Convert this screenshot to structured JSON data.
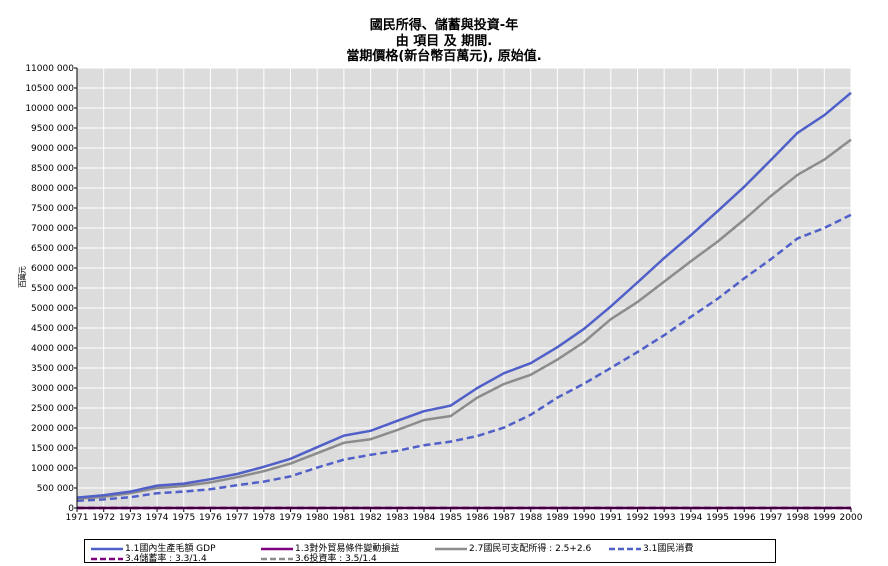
{
  "title": {
    "line1": "國民所得、儲蓄與投資-年",
    "line2": "由 項目 及 期間.",
    "line3": "當期價格(新台幣百萬元), 原始值."
  },
  "yaxis_label": "百萬元",
  "colors": {
    "plot_bg": "#dcdcdc",
    "grid": "#ffffff",
    "gdp": "#5060c8",
    "terms_of_trade": "#800080",
    "disposable": "#8c8c8c",
    "consumption": "#5060c8",
    "saving_rate": "#800080",
    "investment_rate": "#8c8c8c"
  },
  "chart_data": {
    "type": "line",
    "x": [
      "1971",
      "1972",
      "1973",
      "1974",
      "1975",
      "1976",
      "1977",
      "1978",
      "1979",
      "1980",
      "1981",
      "1982",
      "1983",
      "1984",
      "1985",
      "1986",
      "1987",
      "1988",
      "1989",
      "1990",
      "1991",
      "1992",
      "1993",
      "1994",
      "1995",
      "1996",
      "1997",
      "1998",
      "1999",
      "2000"
    ],
    "xlabel": "",
    "ylabel": "百萬元",
    "ylim": [
      0,
      11000000
    ],
    "yticks": [
      0,
      500000,
      1000000,
      1500000,
      2000000,
      2500000,
      3000000,
      3500000,
      4000000,
      4500000,
      5000000,
      5500000,
      6000000,
      6500000,
      7000000,
      7500000,
      8000000,
      8500000,
      9000000,
      9500000,
      10000000,
      10500000,
      11000000
    ],
    "ytick_labels": [
      "0",
      "500 000",
      "1000 000",
      "1500 000",
      "2000 000",
      "2500 000",
      "3000 000",
      "3500 000",
      "4000 000",
      "4500 000",
      "5000 000",
      "5500 000",
      "6000 000",
      "6500 000",
      "7000 000",
      "7500 000",
      "8000 000",
      "8500 000",
      "9000 000",
      "9500 000",
      "10000 000",
      "10500 000",
      "11000 000"
    ],
    "grid": true,
    "legend_position": "bottom",
    "series": [
      {
        "name": "1.1國內生產毛額 GDP",
        "style": "solid",
        "color": "#5060c8",
        "values": [
          260000,
          320000,
          410000,
          560000,
          610000,
          720000,
          850000,
          1030000,
          1230000,
          1520000,
          1810000,
          1930000,
          2180000,
          2420000,
          2560000,
          3000000,
          3370000,
          3620000,
          4020000,
          4480000,
          5040000,
          5640000,
          6250000,
          6820000,
          7420000,
          8030000,
          8700000,
          9380000,
          9820000,
          10380000
        ]
      },
      {
        "name": "1.3對外貿易條件變動損益",
        "style": "solid",
        "color": "#800080",
        "values": [
          0,
          0,
          0,
          0,
          0,
          0,
          0,
          0,
          0,
          0,
          0,
          0,
          0,
          0,
          0,
          0,
          0,
          0,
          0,
          0,
          0,
          0,
          0,
          0,
          0,
          0,
          0,
          0,
          0,
          0
        ]
      },
      {
        "name": "2.7國民可支配所得 : 2.5+2.6",
        "style": "solid",
        "color": "#8c8c8c",
        "values": [
          230000,
          280000,
          370000,
          500000,
          550000,
          640000,
          770000,
          920000,
          1110000,
          1370000,
          1630000,
          1720000,
          1950000,
          2200000,
          2300000,
          2760000,
          3100000,
          3330000,
          3710000,
          4150000,
          4720000,
          5150000,
          5660000,
          6170000,
          6660000,
          7210000,
          7800000,
          8330000,
          8710000,
          9210000
        ]
      },
      {
        "name": "3.1國民消費",
        "style": "dashed",
        "color": "#5060c8",
        "values": [
          180000,
          215000,
          270000,
          370000,
          410000,
          470000,
          570000,
          660000,
          790000,
          1010000,
          1210000,
          1330000,
          1430000,
          1570000,
          1660000,
          1800000,
          2010000,
          2330000,
          2760000,
          3110000,
          3500000,
          3900000,
          4320000,
          4780000,
          5230000,
          5740000,
          6220000,
          6740000,
          7000000,
          7330000
        ]
      },
      {
        "name": "3.4儲蓄率 : 3.3/1.4",
        "style": "dashed",
        "color": "#800080",
        "values": [
          0,
          0,
          0,
          0,
          0,
          0,
          0,
          0,
          0,
          0,
          0,
          0,
          0,
          0,
          0,
          0,
          0,
          0,
          0,
          0,
          0,
          0,
          0,
          0,
          0,
          0,
          0,
          0,
          0,
          0
        ]
      },
      {
        "name": "3.6投資率 : 3.5/1.4",
        "style": "dashed",
        "color": "#8c8c8c",
        "values": [
          0,
          0,
          0,
          0,
          0,
          0,
          0,
          0,
          0,
          0,
          0,
          0,
          0,
          0,
          0,
          0,
          0,
          0,
          0,
          0,
          0,
          0,
          0,
          0,
          0,
          0,
          0,
          0,
          0,
          0
        ]
      }
    ]
  }
}
